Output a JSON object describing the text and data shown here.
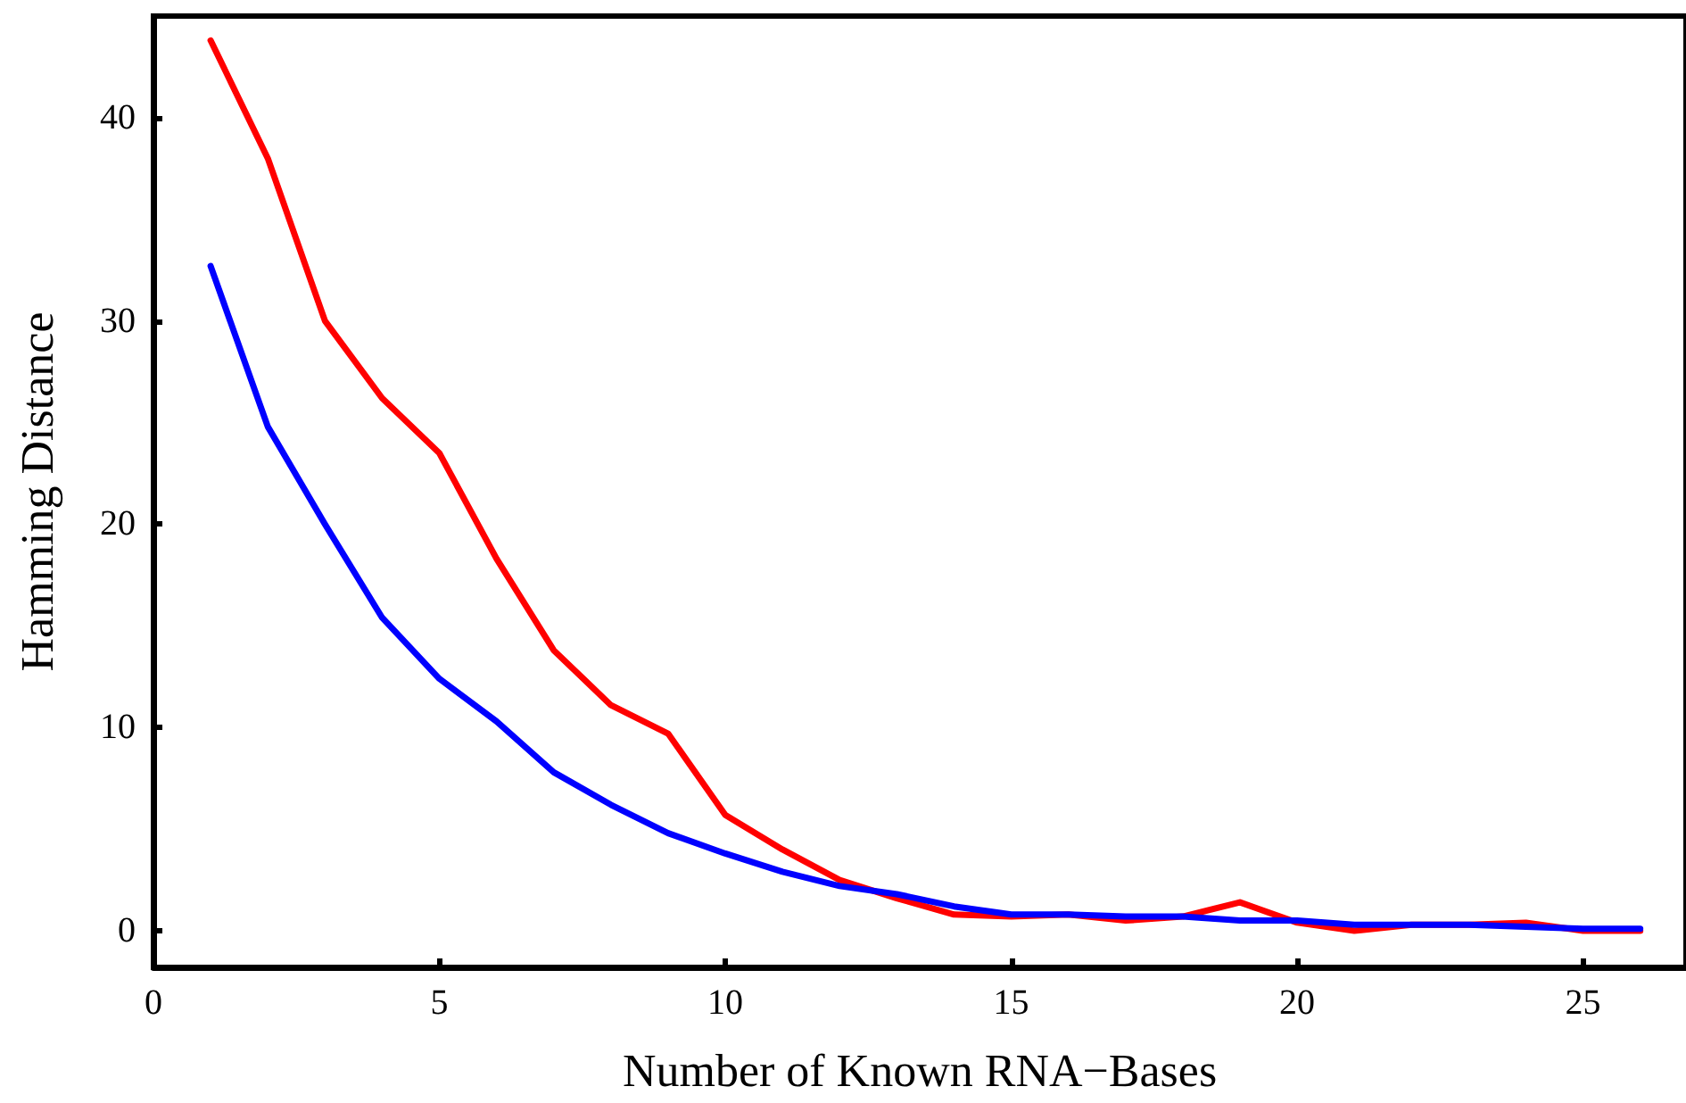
{
  "chart_data": {
    "type": "line",
    "xlabel": "Number of Known RNA−Bases",
    "ylabel": "Hamming Distance",
    "x": [
      1,
      2,
      3,
      4,
      5,
      6,
      7,
      8,
      9,
      10,
      11,
      12,
      13,
      14,
      15,
      16,
      17,
      18,
      19,
      20,
      21,
      22,
      23,
      24,
      25,
      26
    ],
    "series": [
      {
        "color": "#ff0000",
        "values": [
          43.8,
          38,
          30,
          26.2,
          23.5,
          18.3,
          13.8,
          11.1,
          9.7,
          5.7,
          4,
          2.5,
          1.6,
          0.8,
          0.7,
          0.8,
          0.5,
          0.7,
          1.4,
          0.4,
          0,
          0.3,
          0.3,
          0.4,
          0,
          0
        ]
      },
      {
        "color": "#0000ff",
        "values": [
          32.7,
          24.8,
          20,
          15.4,
          12.4,
          10.3,
          7.8,
          6.2,
          4.8,
          3.8,
          2.9,
          2.2,
          1.8,
          1.2,
          0.8,
          0.8,
          0.7,
          0.7,
          0.5,
          0.5,
          0.3,
          0.3,
          0.3,
          0.2,
          0.1,
          0.1
        ]
      }
    ],
    "xlim": [
      0,
      26.8
    ],
    "xticks": [
      0,
      5,
      10,
      15,
      20,
      25
    ],
    "ylim": [
      -1.8,
      45
    ],
    "yticks": [
      0,
      10,
      20,
      30,
      40
    ],
    "grid": false,
    "marker": "none",
    "line_style": "solid"
  }
}
